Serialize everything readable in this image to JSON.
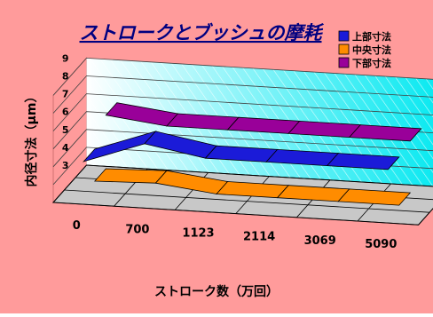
{
  "chart_data": {
    "type": "area",
    "title": "ストロークとブッシュの摩耗",
    "xlabel": "ストローク数（万回）",
    "ylabel": "内径寸法（μm）",
    "categories": [
      "0",
      "700",
      "1123",
      "2114",
      "3069",
      "5090"
    ],
    "ylim": [
      3,
      9
    ],
    "yticks": [
      "3",
      "4",
      "5",
      "6",
      "7",
      "8",
      "9"
    ],
    "legend_position": "top-right",
    "grid": true,
    "series": [
      {
        "name": "上部寸法",
        "color": "#1b1bd8",
        "values": [
          5.4,
          6.6,
          6.0,
          6.0,
          6.0,
          6.0
        ]
      },
      {
        "name": "中央寸法",
        "color": "#ff8c00",
        "values": [
          3.6,
          3.7,
          3.3,
          3.3,
          3.3,
          3.3
        ]
      },
      {
        "name": "下部寸法",
        "color": "#990099",
        "values": [
          6.6,
          6.2,
          6.2,
          6.2,
          6.2,
          6.2
        ]
      }
    ]
  },
  "colors": {
    "background": "#ff9b9b",
    "wall": "#00e8f0",
    "wall_hatch": "#ffffff",
    "floor": "#c8c8c8",
    "title": "#000080"
  }
}
